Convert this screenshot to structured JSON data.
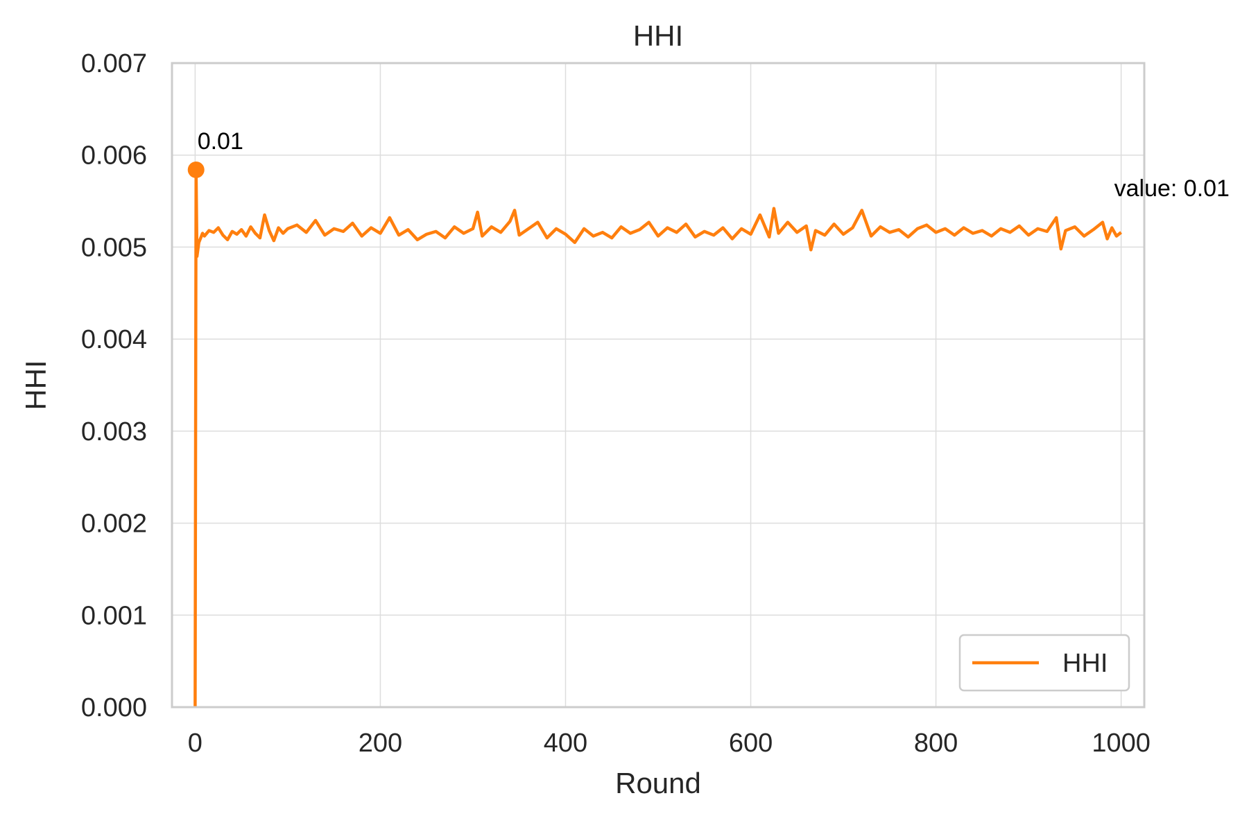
{
  "chart_data": {
    "type": "line",
    "title": "HHI",
    "xlabel": "Round",
    "ylabel": "HHI",
    "xlim": [
      -25,
      1025
    ],
    "ylim": [
      0,
      0.007
    ],
    "x_ticks": [
      0,
      200,
      400,
      600,
      800,
      1000
    ],
    "x_tick_labels": [
      "0",
      "200",
      "400",
      "600",
      "800",
      "1000"
    ],
    "y_ticks": [
      0,
      0.001,
      0.002,
      0.003,
      0.004,
      0.005,
      0.006,
      0.007
    ],
    "y_tick_labels": [
      "0.000",
      "0.001",
      "0.002",
      "0.003",
      "0.004",
      "0.005",
      "0.006",
      "0.007"
    ],
    "grid": true,
    "legend": {
      "placement": "lower-right",
      "entries": [
        "HHI"
      ]
    },
    "series": [
      {
        "name": "HHI",
        "color": "#ff7f0e",
        "points": [
          [
            0,
            0.0
          ],
          [
            1,
            0.00584
          ],
          [
            2,
            0.0049
          ],
          [
            4,
            0.00505
          ],
          [
            6,
            0.0051
          ],
          [
            8,
            0.00515
          ],
          [
            10,
            0.00512
          ],
          [
            15,
            0.00518
          ],
          [
            20,
            0.00516
          ],
          [
            25,
            0.00521
          ],
          [
            30,
            0.00513
          ],
          [
            35,
            0.00508
          ],
          [
            40,
            0.00517
          ],
          [
            45,
            0.00514
          ],
          [
            50,
            0.00519
          ],
          [
            55,
            0.00512
          ],
          [
            60,
            0.00522
          ],
          [
            65,
            0.00515
          ],
          [
            70,
            0.0051
          ],
          [
            75,
            0.00535
          ],
          [
            80,
            0.00518
          ],
          [
            85,
            0.00507
          ],
          [
            90,
            0.00521
          ],
          [
            95,
            0.00515
          ],
          [
            100,
            0.0052
          ],
          [
            110,
            0.00524
          ],
          [
            120,
            0.00516
          ],
          [
            130,
            0.00529
          ],
          [
            140,
            0.00513
          ],
          [
            150,
            0.0052
          ],
          [
            160,
            0.00517
          ],
          [
            170,
            0.00526
          ],
          [
            180,
            0.00512
          ],
          [
            190,
            0.00521
          ],
          [
            200,
            0.00515
          ],
          [
            210,
            0.00532
          ],
          [
            220,
            0.00513
          ],
          [
            230,
            0.00519
          ],
          [
            240,
            0.00508
          ],
          [
            250,
            0.00514
          ],
          [
            260,
            0.00517
          ],
          [
            270,
            0.0051
          ],
          [
            280,
            0.00522
          ],
          [
            290,
            0.00515
          ],
          [
            300,
            0.0052
          ],
          [
            305,
            0.00538
          ],
          [
            310,
            0.00512
          ],
          [
            320,
            0.00522
          ],
          [
            330,
            0.00516
          ],
          [
            340,
            0.00528
          ],
          [
            345,
            0.0054
          ],
          [
            350,
            0.00513
          ],
          [
            360,
            0.0052
          ],
          [
            370,
            0.00527
          ],
          [
            380,
            0.0051
          ],
          [
            390,
            0.0052
          ],
          [
            400,
            0.00514
          ],
          [
            410,
            0.00505
          ],
          [
            420,
            0.0052
          ],
          [
            430,
            0.00512
          ],
          [
            440,
            0.00516
          ],
          [
            450,
            0.0051
          ],
          [
            460,
            0.00522
          ],
          [
            470,
            0.00515
          ],
          [
            480,
            0.00519
          ],
          [
            490,
            0.00527
          ],
          [
            500,
            0.00512
          ],
          [
            510,
            0.00521
          ],
          [
            520,
            0.00516
          ],
          [
            530,
            0.00525
          ],
          [
            540,
            0.00511
          ],
          [
            550,
            0.00517
          ],
          [
            560,
            0.00513
          ],
          [
            570,
            0.00521
          ],
          [
            580,
            0.00509
          ],
          [
            590,
            0.0052
          ],
          [
            600,
            0.00514
          ],
          [
            610,
            0.00535
          ],
          [
            620,
            0.00511
          ],
          [
            625,
            0.00542
          ],
          [
            630,
            0.00515
          ],
          [
            640,
            0.00527
          ],
          [
            650,
            0.00516
          ],
          [
            660,
            0.00523
          ],
          [
            665,
            0.00497
          ],
          [
            670,
            0.00518
          ],
          [
            680,
            0.00513
          ],
          [
            690,
            0.00525
          ],
          [
            700,
            0.00514
          ],
          [
            710,
            0.00521
          ],
          [
            720,
            0.0054
          ],
          [
            730,
            0.00512
          ],
          [
            740,
            0.00522
          ],
          [
            750,
            0.00516
          ],
          [
            760,
            0.00519
          ],
          [
            770,
            0.00511
          ],
          [
            780,
            0.0052
          ],
          [
            790,
            0.00524
          ],
          [
            800,
            0.00516
          ],
          [
            810,
            0.0052
          ],
          [
            820,
            0.00513
          ],
          [
            830,
            0.00521
          ],
          [
            840,
            0.00515
          ],
          [
            850,
            0.00518
          ],
          [
            860,
            0.00512
          ],
          [
            870,
            0.0052
          ],
          [
            880,
            0.00516
          ],
          [
            890,
            0.00523
          ],
          [
            900,
            0.00513
          ],
          [
            910,
            0.0052
          ],
          [
            920,
            0.00517
          ],
          [
            930,
            0.00532
          ],
          [
            935,
            0.00498
          ],
          [
            940,
            0.00518
          ],
          [
            950,
            0.00522
          ],
          [
            960,
            0.00512
          ],
          [
            970,
            0.00519
          ],
          [
            980,
            0.00527
          ],
          [
            985,
            0.00509
          ],
          [
            990,
            0.00521
          ],
          [
            995,
            0.00512
          ],
          [
            1000,
            0.00516
          ]
        ]
      }
    ],
    "annotations": [
      {
        "text": "0.01",
        "x": 1,
        "y": 0.00584,
        "marker": true
      },
      {
        "text": "value: 0.01",
        "x": 1000,
        "y": 0.00516,
        "marker": false
      }
    ]
  }
}
